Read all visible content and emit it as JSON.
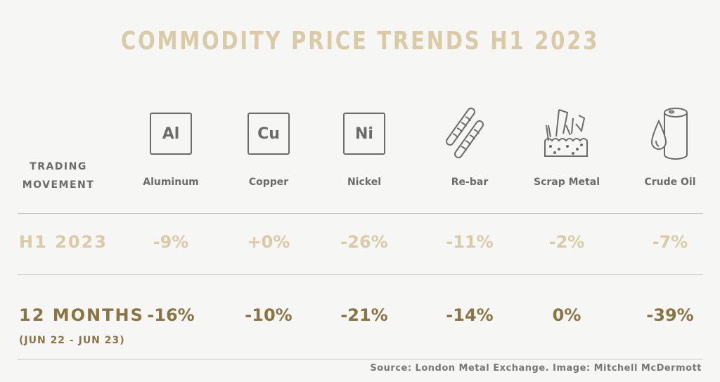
{
  "title": "COMMODITY PRICE TRENDS H1 2023",
  "row_header": "TRADING MOVEMENT",
  "colors": {
    "light_gold": "#d9cba6",
    "dark_gold": "#8a7442",
    "gray": "#6b6b6b",
    "background": "#f6f6f4"
  },
  "chart_data": {
    "type": "table",
    "title": "COMMODITY PRICE TRENDS H1 2023",
    "columns": [
      {
        "name": "Aluminum",
        "symbol": "Al",
        "icon": "aluminum-element-icon"
      },
      {
        "name": "Copper",
        "symbol": "Cu",
        "icon": "copper-element-icon"
      },
      {
        "name": "Nickel",
        "symbol": "Ni",
        "icon": "nickel-element-icon"
      },
      {
        "name": "Re-bar",
        "icon": "rebar-icon"
      },
      {
        "name": "Scrap Metal",
        "icon": "scrap-metal-icon"
      },
      {
        "name": "Crude Oil",
        "icon": "oil-barrel-icon"
      }
    ],
    "rows": [
      {
        "label": "H1 2023",
        "sublabel": "",
        "values": [
          "-9%",
          "+0%",
          "-26%",
          "-11%",
          "-2%",
          "-7%"
        ]
      },
      {
        "label": "12 MONTHS",
        "sublabel": "(JUN 22 - JUN 23)",
        "values": [
          "-16%",
          "-10%",
          "-21%",
          "-14%",
          "0%",
          "-39%"
        ]
      }
    ]
  },
  "source": "Source: London Metal Exchange. Image: Mitchell McDermott"
}
